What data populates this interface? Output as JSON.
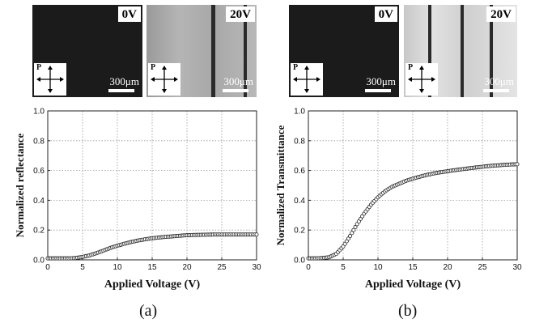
{
  "panels": [
    {
      "id": "a",
      "sublabel": "(a)",
      "micrographs": [
        {
          "voltage_label": "0V",
          "scale_label": "300μm",
          "polarizer_label": "P",
          "state": "dark"
        },
        {
          "voltage_label": "20V",
          "scale_label": "300μm",
          "polarizer_label": "P",
          "state": "bright"
        }
      ]
    },
    {
      "id": "b",
      "sublabel": "(b)",
      "micrographs": [
        {
          "voltage_label": "0V",
          "scale_label": "300μm",
          "polarizer_label": "P",
          "state": "dark"
        },
        {
          "voltage_label": "20V",
          "scale_label": "300μm",
          "polarizer_label": "P",
          "state": "bright"
        }
      ]
    }
  ],
  "chart_data": [
    {
      "type": "scatter",
      "xlabel": "Applied Voltage (V)",
      "ylabel": "Normalized reflectance",
      "xlim": [
        0,
        30
      ],
      "ylim": [
        0,
        1.0
      ],
      "xticks": [
        0,
        5,
        10,
        15,
        20,
        25,
        30
      ],
      "yticks": [
        0,
        0.2,
        0.4,
        0.6,
        0.8,
        1.0
      ],
      "grid": true,
      "marker": "open-circle",
      "x": [
        0,
        1,
        2,
        3,
        4,
        5,
        6,
        7,
        8,
        9,
        10,
        11,
        12,
        13,
        14,
        15,
        16,
        17,
        18,
        19,
        20,
        21,
        22,
        23,
        24,
        25,
        26,
        27,
        28,
        29,
        30
      ],
      "y": [
        0.01,
        0.01,
        0.01,
        0.01,
        0.012,
        0.02,
        0.03,
        0.045,
        0.062,
        0.08,
        0.095,
        0.108,
        0.12,
        0.13,
        0.138,
        0.145,
        0.15,
        0.155,
        0.158,
        0.162,
        0.165,
        0.167,
        0.168,
        0.169,
        0.17,
        0.17,
        0.17,
        0.17,
        0.17,
        0.17,
        0.17
      ]
    },
    {
      "type": "scatter",
      "xlabel": "Applied Voltage (V)",
      "ylabel": "Normalized Transmittance",
      "xlim": [
        0,
        30
      ],
      "ylim": [
        0,
        1.0
      ],
      "xticks": [
        0,
        5,
        10,
        15,
        20,
        25,
        30
      ],
      "yticks": [
        0,
        0.2,
        0.4,
        0.6,
        0.8,
        1.0
      ],
      "grid": true,
      "marker": "open-circle",
      "x": [
        0,
        1,
        2,
        3,
        4,
        5,
        6,
        7,
        8,
        9,
        10,
        11,
        12,
        13,
        14,
        15,
        16,
        17,
        18,
        19,
        20,
        21,
        22,
        23,
        24,
        25,
        26,
        27,
        28,
        29,
        30
      ],
      "y": [
        0.01,
        0.01,
        0.012,
        0.018,
        0.04,
        0.09,
        0.16,
        0.24,
        0.31,
        0.37,
        0.42,
        0.46,
        0.49,
        0.51,
        0.53,
        0.545,
        0.558,
        0.57,
        0.58,
        0.588,
        0.595,
        0.602,
        0.608,
        0.614,
        0.62,
        0.625,
        0.63,
        0.634,
        0.637,
        0.64,
        0.642
      ]
    }
  ]
}
